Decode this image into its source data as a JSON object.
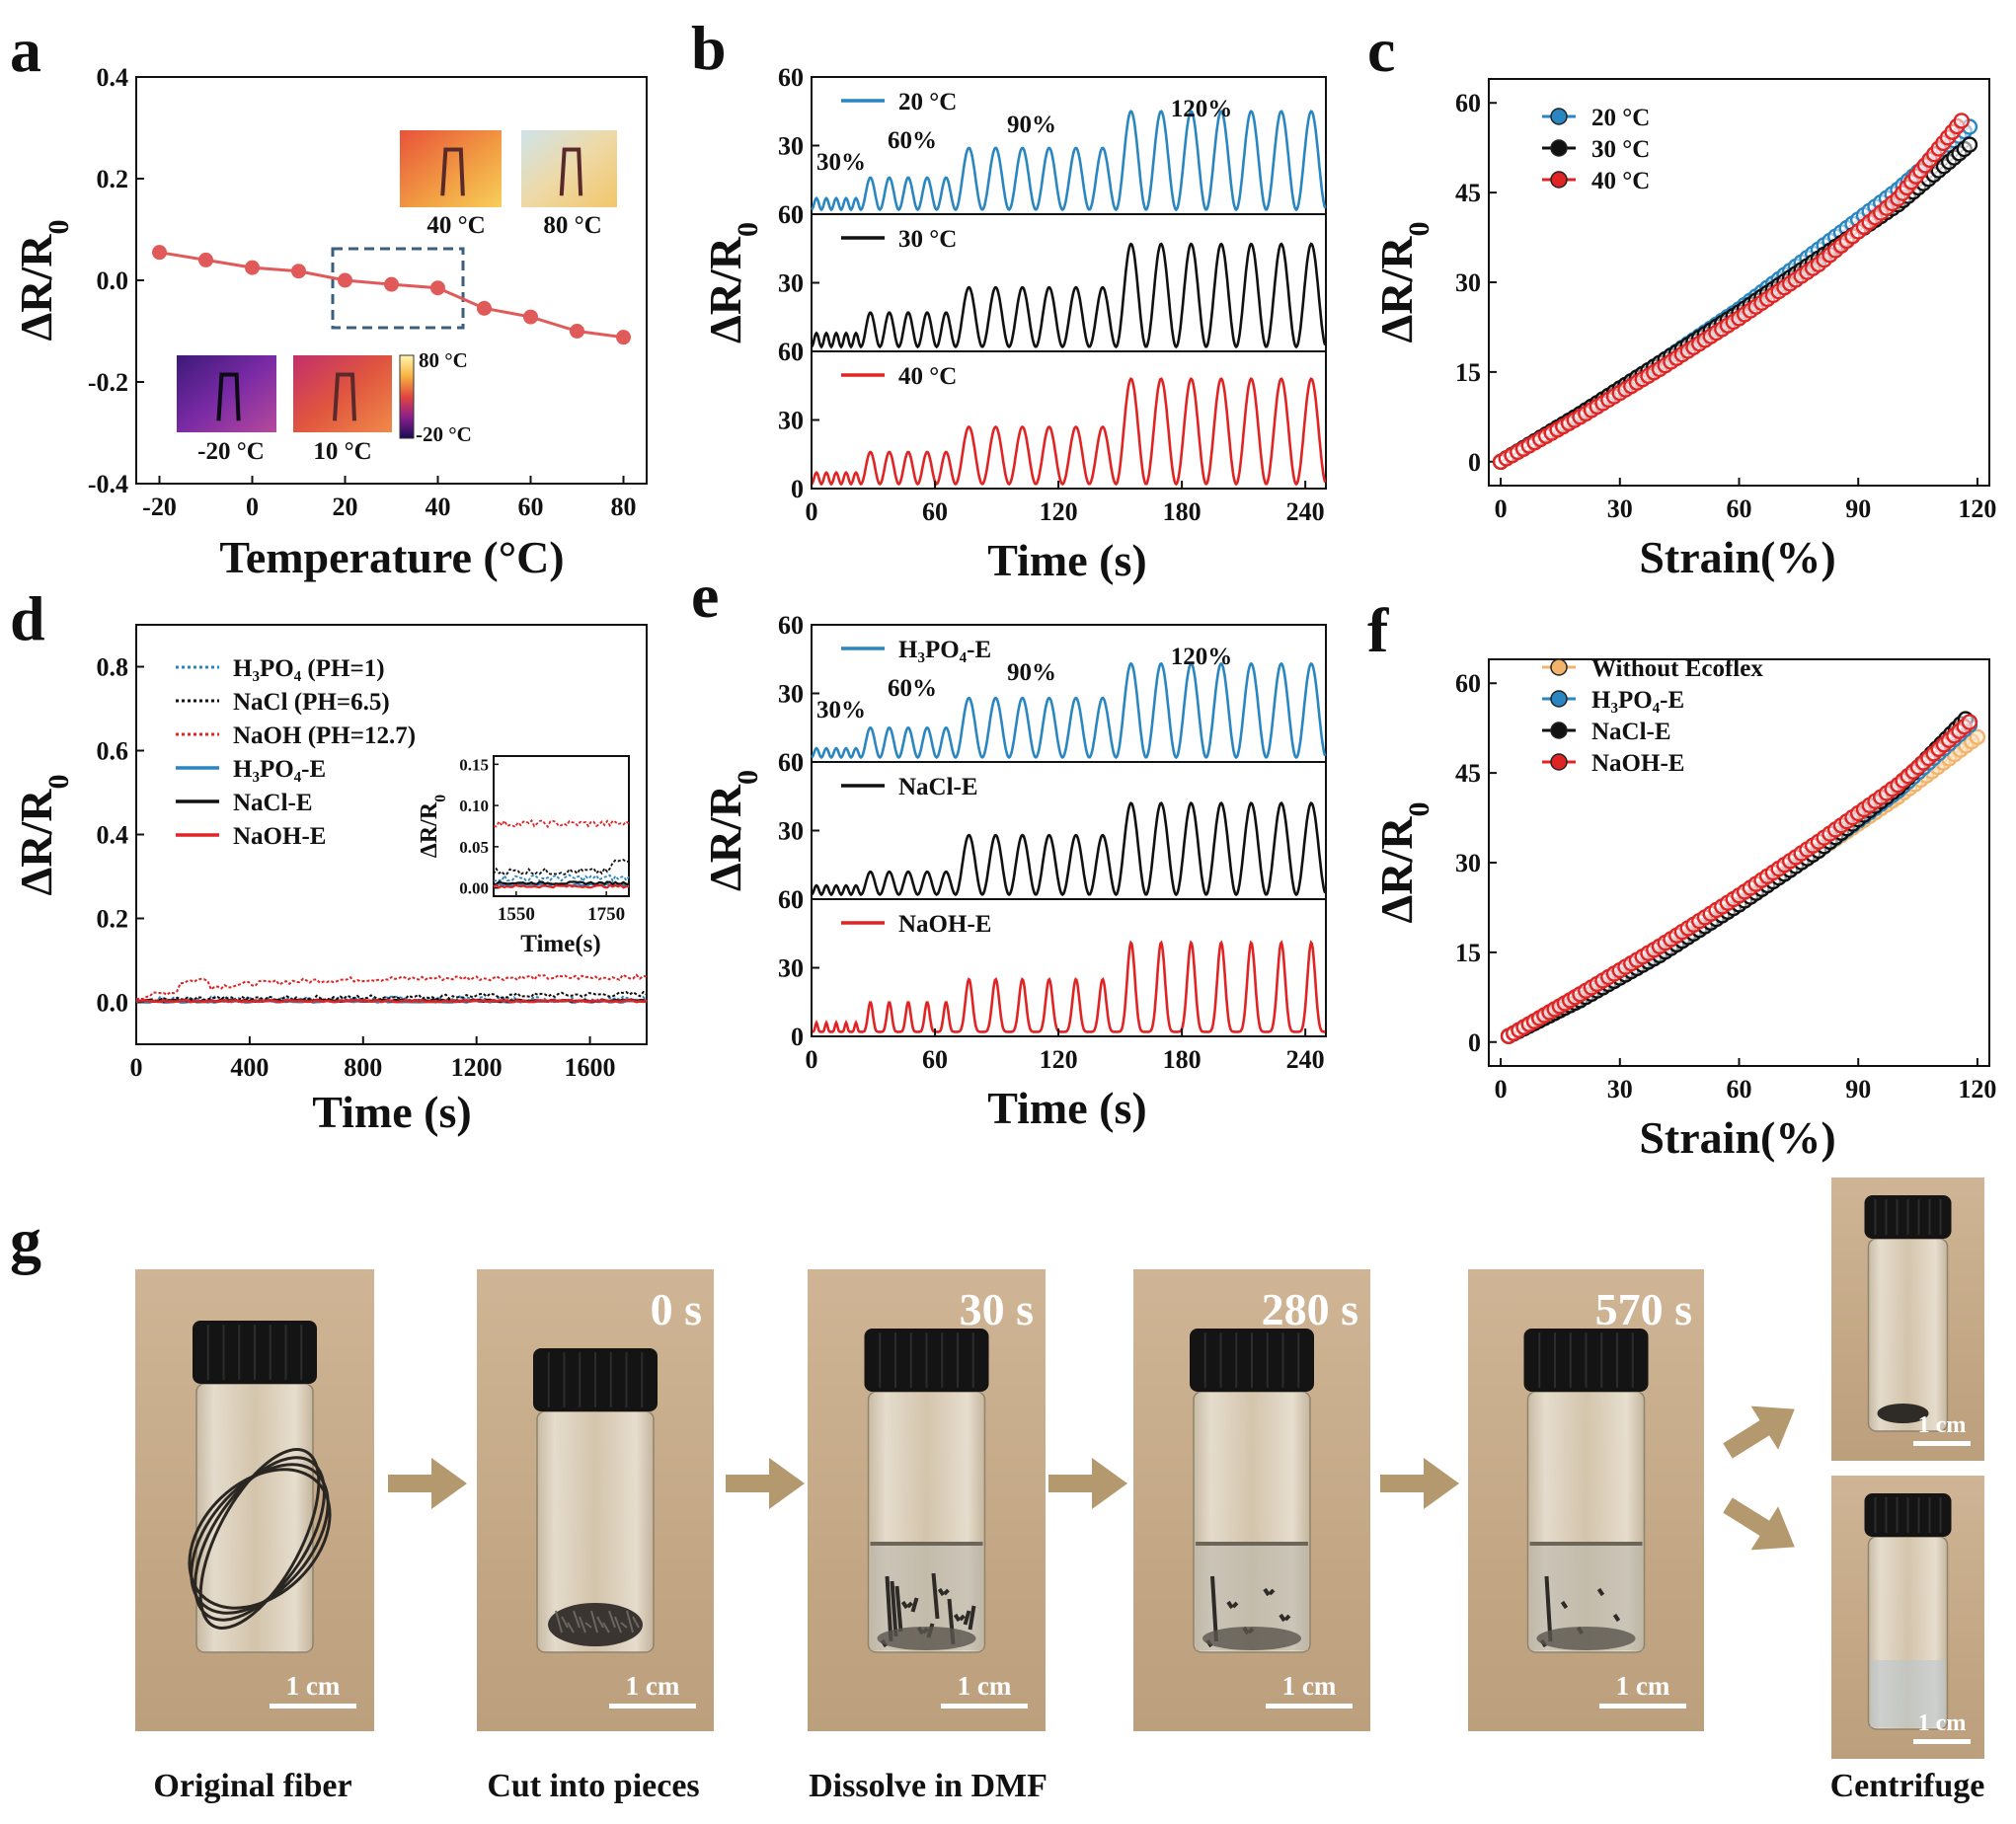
{
  "colors": {
    "blue": "#2a86c0",
    "black": "#111111",
    "red": "#e02424",
    "orange": "#f2b36b",
    "arrow": "#b5996e",
    "photo_bg": "#c9ad8c"
  },
  "panel_labels": [
    "a",
    "b",
    "c",
    "d",
    "e",
    "f",
    "g"
  ],
  "chart_data": [
    {
      "id": "a",
      "type": "line",
      "title": "",
      "xlabel": "Temperature (°C)",
      "ylabel": "ΔR/R0",
      "xlim": [
        -25,
        85
      ],
      "ylim": [
        -0.4,
        0.4
      ],
      "xticks": [
        "-20",
        "0",
        "20",
        "40",
        "60",
        "80"
      ],
      "yticks": [
        "-0.4",
        "-0.2",
        "0.0",
        "0.2",
        "0.4"
      ],
      "x": [
        -20,
        -10,
        0,
        10,
        20,
        30,
        40,
        50,
        60,
        70,
        80
      ],
      "y": [
        0.055,
        0.04,
        0.025,
        0.018,
        0.0,
        -0.008,
        -0.015,
        -0.055,
        -0.072,
        -0.1,
        -0.112
      ],
      "thermal_images": [
        {
          "label": "40 °C",
          "kind": "hot"
        },
        {
          "label": "80 °C",
          "kind": "pale"
        },
        {
          "label": "-20 °C",
          "kind": "cold"
        },
        {
          "label": "10 °C",
          "kind": "warm"
        }
      ],
      "colorbar": {
        "max": "80 °C",
        "min": "-20 °C"
      }
    },
    {
      "id": "b",
      "type": "line",
      "xlabel": "Time (s)",
      "ylabel": "ΔR/R0",
      "xlim": [
        0,
        250
      ],
      "ylim": [
        0,
        60
      ],
      "xticks": [
        "0",
        "60",
        "120",
        "180",
        "240"
      ],
      "yticks": [
        "0",
        "30",
        "60"
      ],
      "strain_labels": [
        "30%",
        "60%",
        "90%",
        "120%"
      ],
      "segments": [
        {
          "strain": "30%",
          "t_start": 0,
          "t_end": 24,
          "cycles": 5,
          "period": 4.8
        },
        {
          "strain": "60%",
          "t_start": 24,
          "t_end": 70,
          "cycles": 5,
          "period": 9.2
        },
        {
          "strain": "90%",
          "t_start": 70,
          "t_end": 148,
          "cycles": 6,
          "period": 13
        },
        {
          "strain": "120%",
          "t_start": 148,
          "t_end": 250,
          "cycles": 7,
          "period": 14.6
        }
      ],
      "series": [
        {
          "name": "20 °C",
          "color": "blue",
          "peaks": [
            7,
            16,
            29,
            45
          ]
        },
        {
          "name": "30 °C",
          "color": "black",
          "peaks": [
            8,
            17,
            28,
            47
          ]
        },
        {
          "name": "40 °C",
          "color": "red",
          "peaks": [
            7,
            16,
            27,
            48
          ]
        }
      ]
    },
    {
      "id": "c",
      "type": "scatter",
      "xlabel": "Strain(%)",
      "ylabel": "ΔR/R0",
      "xlim": [
        -3,
        123
      ],
      "ylim": [
        -4,
        64
      ],
      "xticks": [
        "0",
        "30",
        "60",
        "90",
        "120"
      ],
      "yticks": [
        "0",
        "15",
        "30",
        "45",
        "60"
      ],
      "series": [
        {
          "name": "20 °C",
          "color": "blue",
          "x": [
            0,
            20,
            40,
            60,
            80,
            100,
            118
          ],
          "y": [
            0,
            8,
            16.5,
            25.5,
            35.5,
            45.5,
            56
          ]
        },
        {
          "name": "30 °C",
          "color": "black",
          "x": [
            0,
            20,
            40,
            60,
            80,
            100,
            118
          ],
          "y": [
            0,
            8,
            16.5,
            25,
            34,
            43,
            53
          ]
        },
        {
          "name": "40 °C",
          "color": "red",
          "x": [
            0,
            20,
            40,
            60,
            80,
            100,
            116
          ],
          "y": [
            0,
            7.5,
            15.5,
            24,
            33,
            44,
            57
          ]
        }
      ]
    },
    {
      "id": "d",
      "type": "line",
      "xlabel": "Time (s)",
      "ylabel": "ΔR/R0",
      "xlim": [
        0,
        1800
      ],
      "ylim": [
        -0.1,
        0.9
      ],
      "xticks": [
        "0",
        "400",
        "800",
        "1200",
        "1600"
      ],
      "yticks": [
        "0.0",
        "0.2",
        "0.4",
        "0.6",
        "0.8"
      ],
      "series": [
        {
          "name": "H₃PO₄ (PH=1)",
          "color": "blue",
          "dashed": true,
          "base": 0.008
        },
        {
          "name": "NaCl   (PH=6.5)",
          "color": "black",
          "dashed": true,
          "base": 0.015
        },
        {
          "name": "NaOH (PH=12.7)",
          "color": "red",
          "dashed": true,
          "base": 0.055
        },
        {
          "name": "H₃PO₄-E",
          "color": "blue",
          "dashed": false,
          "base": 0.002
        },
        {
          "name": "NaCl-E",
          "color": "black",
          "dashed": false,
          "base": 0.004
        },
        {
          "name": "NaOH-E",
          "color": "red",
          "dashed": false,
          "base": 0.003
        }
      ],
      "inset": {
        "xlabel": "Time(s)",
        "ylabel": "ΔR/R0",
        "xlim": [
          1500,
          1800
        ],
        "ylim": [
          -0.01,
          0.16
        ],
        "xticks": [
          "1550",
          "1750"
        ],
        "yticks": [
          "0.00",
          "0.05",
          "0.10",
          "0.15"
        ]
      }
    },
    {
      "id": "e",
      "type": "line",
      "xlabel": "Time (s)",
      "ylabel": "ΔR/R0",
      "xlim": [
        0,
        250
      ],
      "ylim": [
        0,
        60
      ],
      "xticks": [
        "0",
        "60",
        "120",
        "180",
        "240"
      ],
      "yticks": [
        "0",
        "30",
        "60"
      ],
      "strain_labels": [
        "30%",
        "60%",
        "90%",
        "120%"
      ],
      "series": [
        {
          "name": "H₃PO₄-E",
          "color": "blue",
          "peaks": [
            6,
            15,
            28,
            43
          ]
        },
        {
          "name": "NaCl-E",
          "color": "black",
          "peaks": [
            6,
            12,
            28,
            42
          ]
        },
        {
          "name": "NaOH-E",
          "color": "red",
          "peaks": [
            6,
            15,
            25,
            41
          ]
        }
      ]
    },
    {
      "id": "f",
      "type": "scatter",
      "xlabel": "Strain(%)",
      "ylabel": "ΔR/R0",
      "xlim": [
        -3,
        123
      ],
      "ylim": [
        -4,
        64
      ],
      "xticks": [
        "0",
        "30",
        "60",
        "90",
        "120"
      ],
      "yticks": [
        "0",
        "15",
        "30",
        "45",
        "60"
      ],
      "series": [
        {
          "name": "Without Ecoflex",
          "color": "orange",
          "x": [
            2,
            20,
            40,
            60,
            80,
            100,
            120
          ],
          "y": [
            1,
            7,
            15,
            23,
            32,
            41,
            51
          ]
        },
        {
          "name": "H₃PO₄-E",
          "color": "blue",
          "x": [
            2,
            20,
            40,
            60,
            80,
            100,
            118
          ],
          "y": [
            1,
            7,
            15,
            23,
            32,
            42,
            53
          ]
        },
        {
          "name": "NaCl-E",
          "color": "black",
          "x": [
            2,
            20,
            40,
            60,
            80,
            100,
            117
          ],
          "y": [
            1,
            7,
            14.5,
            23,
            32,
            42.5,
            54
          ]
        },
        {
          "name": "NaOH-E",
          "color": "red",
          "x": [
            2,
            20,
            40,
            60,
            80,
            100,
            118
          ],
          "y": [
            1,
            8,
            16,
            24.5,
            33.5,
            43,
            53.5
          ]
        }
      ]
    }
  ],
  "photo_panel": {
    "photos": [
      {
        "stage": "original",
        "time": "",
        "scale": "1 cm"
      },
      {
        "stage": "pieces",
        "time": "0 s",
        "scale": "1 cm"
      },
      {
        "stage": "dissolve30",
        "time": "30 s",
        "scale": "1 cm"
      },
      {
        "stage": "dissolve280",
        "time": "280 s",
        "scale": "1 cm"
      },
      {
        "stage": "dissolve570",
        "time": "570 s",
        "scale": "1 cm"
      },
      {
        "stage": "centrifuge_top",
        "time": "",
        "scale": "1 cm"
      },
      {
        "stage": "centrifuge_bottom",
        "time": "",
        "scale": "1 cm"
      }
    ],
    "captions": [
      "Original fiber",
      "Cut into pieces",
      "Dissolve in DMF",
      "Centrifuge"
    ]
  }
}
